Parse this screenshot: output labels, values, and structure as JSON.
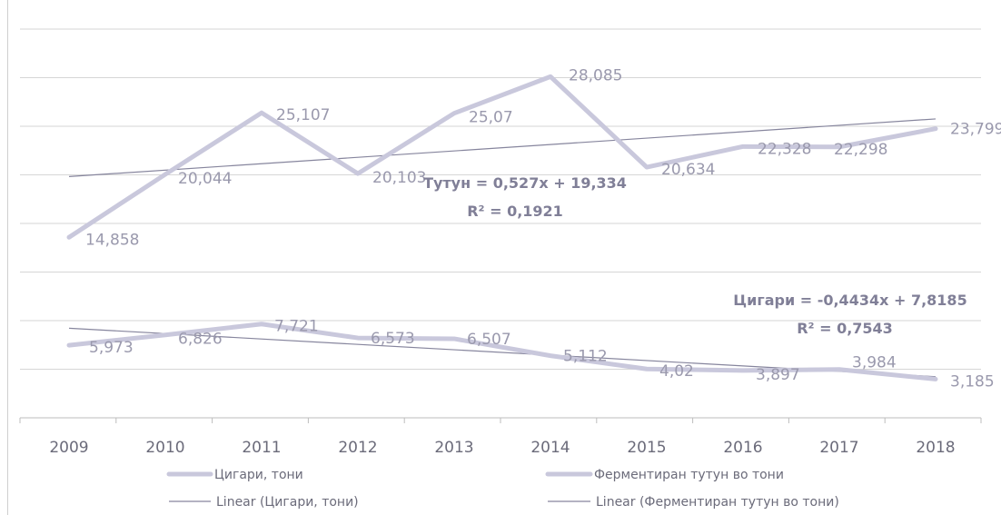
{
  "chart_data": {
    "type": "line",
    "categories": [
      "2009",
      "2010",
      "2011",
      "2012",
      "2013",
      "2014",
      "2015",
      "2016",
      "2017",
      "2018"
    ],
    "ylim": [
      0,
      32
    ],
    "grid": true,
    "legend_position": "bottom",
    "series": [
      {
        "name": "Цигари, тони",
        "values": [
          5.973,
          6.826,
          7.721,
          6.573,
          6.507,
          5.112,
          4.02,
          3.897,
          3.984,
          3.185
        ],
        "labels": [
          "5,973",
          "6,826",
          "7,721",
          "6,573",
          "6,507",
          "5,112",
          "4,02",
          "3,897",
          "3,984",
          "3,185"
        ]
      },
      {
        "name": "Ферментиран тутун во тони",
        "values": [
          14.858,
          20.044,
          25.107,
          20.103,
          25.07,
          28.085,
          20.634,
          22.328,
          22.298,
          23.799
        ],
        "labels": [
          "14,858",
          "20,044",
          "25,107",
          "20,103",
          "25,07",
          "28,085",
          "20,634",
          "22,328",
          "22,298",
          "23,799"
        ]
      }
    ],
    "trendlines": [
      {
        "name": "Linear (Цигари, тони)",
        "slope": -0.4434,
        "intercept": 7.8185
      },
      {
        "name": "Linear (Ферментиран тутун во тони)",
        "slope": 0.527,
        "intercept": 19.334
      }
    ],
    "annotations": [
      {
        "equation": "Тутун = 0,527x + 19,334",
        "r2": "R² = 0,1921"
      },
      {
        "equation": "Цигари = -0,4434x + 7,8185",
        "r2": "R² = 0,7543"
      }
    ],
    "colors": {
      "series": "#c9c8dc",
      "trend": "#86859d",
      "label": "#9a99ad",
      "annotation": "#807f97",
      "axis_text": "#6b6b7a",
      "grid": "#d6d6d6"
    }
  }
}
